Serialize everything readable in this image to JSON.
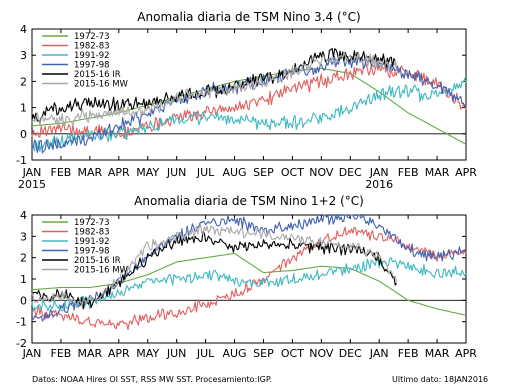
{
  "footer": {
    "sources": "Datos: NOAA Hires OI SST, RSS MW SST.  Procesamiento:IGP.",
    "last_date": "Ultimo dato: 18JAN2016"
  },
  "chart_data": [
    {
      "type": "line",
      "title": "Anomalia diaria de TSM Nino 3.4 (°C)",
      "xlabel": "",
      "ylabel": "",
      "x_ticks": [
        "JAN",
        "FEB",
        "MAR",
        "APR",
        "MAY",
        "JUN",
        "JUL",
        "AUG",
        "SEP",
        "OCT",
        "NOV",
        "DEC",
        "JAN",
        "FEB",
        "MAR",
        "APR"
      ],
      "year_labels": [
        {
          "text": "2015",
          "month_index": 0
        },
        {
          "text": "2016",
          "month_index": 12
        }
      ],
      "ylim": [
        -1,
        4
      ],
      "y_ticks": [
        -1,
        0,
        1,
        2,
        3,
        4
      ],
      "zero_line": true,
      "legend_position": "top-left",
      "series": [
        {
          "name": "1972-73",
          "color": "#66aa44",
          "months": [
            0,
            1,
            2,
            3,
            4,
            5,
            6,
            7,
            8,
            9,
            10,
            11,
            12,
            13,
            14,
            15
          ],
          "values": [
            0.3,
            0.4,
            0.6,
            0.8,
            1.1,
            1.4,
            1.7,
            2.0,
            2.2,
            2.4,
            2.5,
            2.3,
            1.6,
            0.8,
            0.2,
            -0.4
          ]
        },
        {
          "name": "1982-83",
          "color": "#e06060",
          "months": [
            0,
            1,
            2,
            3,
            4,
            5,
            6,
            7,
            8,
            9,
            10,
            11,
            12,
            13,
            14,
            15
          ],
          "values": [
            0.1,
            0.2,
            0.1,
            0.0,
            0.3,
            0.6,
            0.8,
            1.0,
            1.3,
            1.7,
            2.0,
            2.3,
            2.5,
            2.3,
            1.9,
            1.0
          ]
        },
        {
          "name": "1991-92",
          "color": "#40b8c0",
          "months": [
            0,
            1,
            2,
            3,
            4,
            5,
            6,
            7,
            8,
            9,
            10,
            11,
            12,
            13,
            14,
            15
          ],
          "values": [
            -0.5,
            -0.3,
            -0.1,
            0.0,
            0.2,
            0.5,
            0.7,
            0.5,
            0.4,
            0.4,
            0.6,
            1.0,
            1.5,
            1.6,
            1.4,
            2.0
          ]
        },
        {
          "name": "1997-98",
          "color": "#4060b0",
          "months": [
            0,
            1,
            2,
            3,
            4,
            5,
            6,
            7,
            8,
            9,
            10,
            11,
            12,
            13,
            14,
            15
          ],
          "values": [
            -0.5,
            -0.4,
            -0.2,
            0.3,
            0.8,
            1.3,
            1.6,
            1.8,
            2.0,
            2.3,
            2.6,
            2.8,
            2.7,
            2.3,
            1.8,
            1.2
          ]
        },
        {
          "name": "2015-16 IR",
          "color": "#000000",
          "months": [
            0,
            0.5,
            1,
            2,
            3,
            4,
            5,
            6,
            7,
            8,
            9,
            10,
            11,
            12,
            12.6
          ],
          "values": [
            0.5,
            0.9,
            1.0,
            1.2,
            1.1,
            1.2,
            1.4,
            1.6,
            1.8,
            2.1,
            2.4,
            3.0,
            3.0,
            2.8,
            2.6
          ]
        },
        {
          "name": "2015-16 MW",
          "color": "#a8a8a8",
          "months": [
            0,
            0.5,
            1,
            2,
            3,
            4,
            5,
            6,
            7,
            8,
            9,
            10,
            11,
            12,
            12.6
          ],
          "values": [
            0.4,
            0.6,
            0.5,
            0.7,
            0.8,
            1.0,
            1.3,
            1.6,
            1.7,
            2.0,
            2.3,
            2.9,
            2.9,
            2.7,
            2.5
          ]
        }
      ]
    },
    {
      "type": "line",
      "title": "Anomalia diaria de TSM Nino 1+2 (°C)",
      "xlabel": "",
      "ylabel": "",
      "x_ticks": [
        "JAN",
        "FEB",
        "MAR",
        "APR",
        "MAY",
        "JUN",
        "JUL",
        "AUG",
        "SEP",
        "OCT",
        "NOV",
        "DEC",
        "JAN",
        "FEB",
        "MAR",
        "APR"
      ],
      "ylim": [
        -2,
        4
      ],
      "y_ticks": [
        -2,
        -1,
        0,
        1,
        2,
        3,
        4
      ],
      "zero_line": true,
      "legend_position": "top-left",
      "series": [
        {
          "name": "1972-73",
          "color": "#66aa44",
          "months": [
            0,
            1,
            2,
            3,
            4,
            5,
            6,
            7,
            8,
            9,
            10,
            11,
            12,
            13,
            14,
            15
          ],
          "values": [
            0.5,
            0.6,
            0.6,
            0.8,
            1.2,
            1.8,
            2.0,
            2.2,
            1.3,
            1.4,
            1.6,
            1.5,
            0.9,
            0.0,
            -0.4,
            -0.7
          ]
        },
        {
          "name": "1982-83",
          "color": "#e06060",
          "months": [
            0,
            1,
            2,
            3,
            4,
            5,
            6,
            7,
            8,
            9,
            10,
            11,
            12,
            13,
            14,
            15
          ],
          "values": [
            -0.5,
            -0.7,
            -1.0,
            -1.2,
            -0.8,
            -0.6,
            -0.2,
            0.3,
            1.0,
            2.0,
            2.8,
            3.3,
            3.0,
            2.5,
            2.0,
            2.4
          ]
        },
        {
          "name": "1991-92",
          "color": "#40b8c0",
          "months": [
            0,
            1,
            2,
            3,
            4,
            5,
            6,
            7,
            8,
            9,
            10,
            11,
            12,
            13,
            14,
            15
          ],
          "values": [
            -0.3,
            -0.2,
            -0.1,
            0.3,
            0.9,
            1.0,
            1.2,
            0.9,
            0.8,
            1.0,
            1.2,
            1.5,
            1.8,
            1.6,
            1.2,
            1.4
          ]
        },
        {
          "name": "1997-98",
          "color": "#4060b0",
          "months": [
            0,
            1,
            2,
            3,
            4,
            5,
            6,
            7,
            8,
            9,
            10,
            11,
            12,
            13,
            14,
            15
          ],
          "values": [
            -1.0,
            -0.5,
            0.0,
            0.8,
            2.0,
            3.0,
            3.6,
            3.8,
            3.2,
            3.5,
            3.8,
            4.0,
            3.5,
            2.4,
            2.0,
            2.3
          ]
        },
        {
          "name": "2015-16 IR",
          "color": "#000000",
          "months": [
            0,
            0.5,
            1,
            1.5,
            2,
            3,
            4,
            5,
            6,
            7,
            8,
            9,
            10,
            11,
            12,
            12.6
          ],
          "values": [
            0.3,
            0.1,
            0.3,
            0.0,
            -0.2,
            0.8,
            2.0,
            2.8,
            3.0,
            2.5,
            2.7,
            2.6,
            2.5,
            2.4,
            2.0,
            0.8
          ]
        },
        {
          "name": "2015-16 MW",
          "color": "#a8a8a8",
          "months": [
            0,
            0.5,
            1,
            1.5,
            2,
            3,
            4,
            5,
            6,
            7,
            8,
            9,
            10,
            11,
            12,
            12.6
          ],
          "values": [
            0.1,
            0.0,
            0.2,
            -0.1,
            -0.1,
            1.0,
            2.5,
            3.0,
            3.3,
            3.2,
            3.1,
            2.9,
            2.7,
            2.6,
            2.1,
            0.9
          ]
        }
      ]
    }
  ]
}
